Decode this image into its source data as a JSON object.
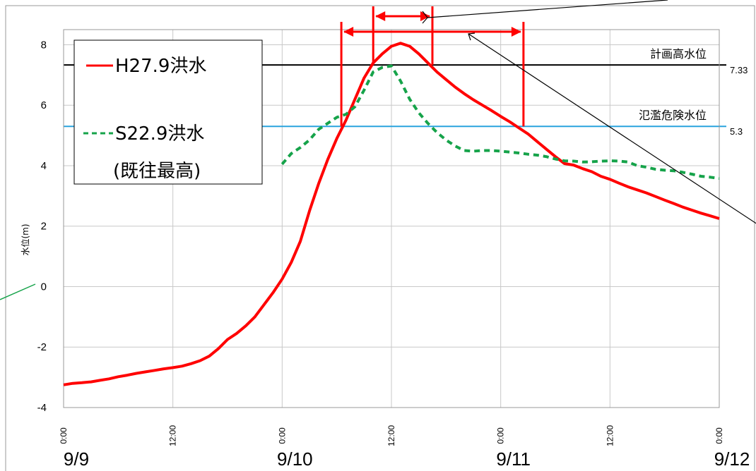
{
  "chart_data": {
    "type": "line",
    "ylabel": "水位(m)",
    "ylim": [
      -4,
      8.5
    ],
    "yticks": [
      "-4",
      "-2",
      "0",
      "2",
      "4",
      "6",
      "8"
    ],
    "xlim_hours": [
      0,
      72
    ],
    "time_ticks": [
      "0:00",
      "12:00",
      "0:00",
      "12:00",
      "0:00",
      "12:00",
      "0:00"
    ],
    "date_ticks": [
      "9/9",
      "9/10",
      "9/11",
      "9/12"
    ],
    "grid": true,
    "legend_position": "top-left",
    "reference_lines": [
      {
        "label": "計画高水位",
        "value": 7.33,
        "value_label": "7.33",
        "color": "#000000"
      },
      {
        "label": "氾濫危険水位",
        "value": 5.3,
        "value_label": "5.3",
        "color": "#29a3dd"
      }
    ],
    "series": [
      {
        "name": "H27.9洪水",
        "color": "#ff0000",
        "style": "solid",
        "x_hours": [
          0,
          1,
          2,
          3,
          4,
          5,
          6,
          7,
          8,
          9,
          10,
          11,
          12,
          13,
          14,
          15,
          16,
          17,
          18,
          19,
          20,
          21,
          22,
          23,
          24,
          25,
          26,
          27,
          28,
          29,
          30,
          31,
          32,
          33,
          34,
          35,
          36,
          37,
          38,
          39,
          40,
          41,
          42,
          43,
          44,
          45,
          46,
          47,
          48,
          49,
          50,
          51,
          52,
          53,
          54,
          55,
          56,
          57,
          58,
          59,
          60,
          61,
          62,
          63,
          64,
          65,
          66,
          67,
          68,
          69,
          70,
          71,
          72
        ],
        "y": [
          -3.25,
          -3.2,
          -3.18,
          -3.15,
          -3.1,
          -3.05,
          -2.98,
          -2.93,
          -2.87,
          -2.82,
          -2.77,
          -2.72,
          -2.68,
          -2.63,
          -2.55,
          -2.45,
          -2.3,
          -2.05,
          -1.75,
          -1.55,
          -1.3,
          -1.0,
          -0.6,
          -0.2,
          0.25,
          0.8,
          1.5,
          2.5,
          3.4,
          4.2,
          4.9,
          5.5,
          6.2,
          6.9,
          7.4,
          7.7,
          7.95,
          8.05,
          7.95,
          7.7,
          7.4,
          7.1,
          6.85,
          6.6,
          6.38,
          6.18,
          6.0,
          5.82,
          5.63,
          5.45,
          5.25,
          5.05,
          4.8,
          4.55,
          4.3,
          4.07,
          4.02,
          3.9,
          3.8,
          3.65,
          3.55,
          3.42,
          3.3,
          3.2,
          3.1,
          2.98,
          2.86,
          2.75,
          2.63,
          2.53,
          2.43,
          2.34,
          2.25
        ]
      },
      {
        "name": "S22.9洪水\n(既往最高)",
        "color": "#16a34a",
        "style": "dashed",
        "x_hours": [
          24,
          25,
          26,
          27,
          28,
          29,
          30,
          31,
          32,
          33,
          34,
          35,
          36,
          37,
          38,
          39,
          40,
          41,
          42,
          43,
          44,
          45,
          46,
          47,
          48,
          49,
          50,
          51,
          52,
          53,
          54,
          55,
          56,
          57,
          58,
          59,
          60,
          61,
          62,
          63,
          64,
          65,
          66,
          67,
          68,
          69,
          70,
          71,
          72
        ],
        "y": [
          4.05,
          4.4,
          4.6,
          4.85,
          5.2,
          5.4,
          5.6,
          5.7,
          5.95,
          6.5,
          7.1,
          7.25,
          7.3,
          6.8,
          6.2,
          5.75,
          5.4,
          5.1,
          4.85,
          4.65,
          4.5,
          4.48,
          4.5,
          4.5,
          4.48,
          4.45,
          4.42,
          4.38,
          4.35,
          4.3,
          4.22,
          4.16,
          4.15,
          4.12,
          4.13,
          4.15,
          4.16,
          4.15,
          4.12,
          4.0,
          3.95,
          3.88,
          3.85,
          3.83,
          3.78,
          3.72,
          3.65,
          3.62,
          3.58
        ]
      }
    ],
    "annotation_brackets": [
      {
        "x_start_hours": 30.5,
        "x_end_hours": 50.5,
        "y_level": 8.5
      },
      {
        "x_start_hours": 34,
        "x_end_hours": 40.5,
        "y_level": 9.0
      }
    ]
  }
}
